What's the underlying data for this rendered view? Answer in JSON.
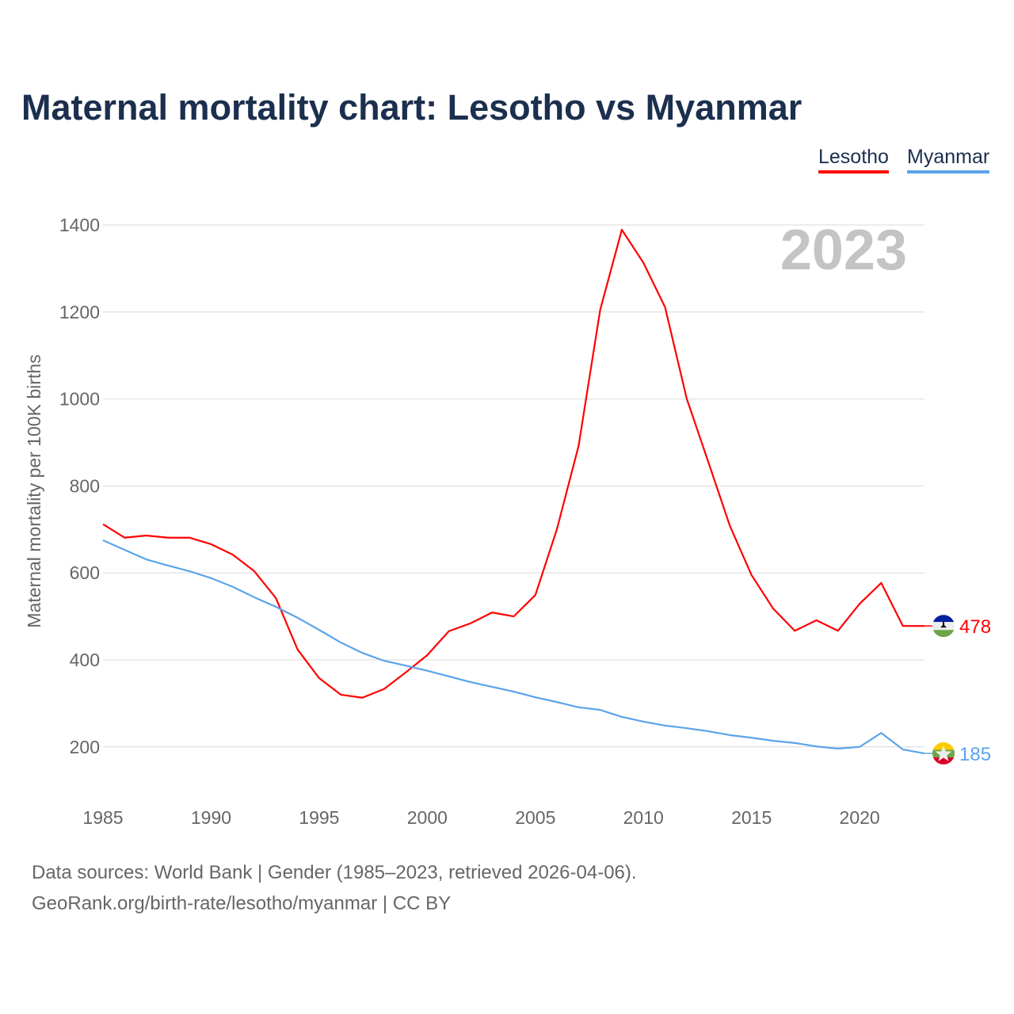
{
  "chart_data": {
    "type": "line",
    "title": "Maternal mortality chart: Lesotho vs Myanmar",
    "xlabel": "",
    "ylabel": "Maternal mortality per 100K births",
    "xlim": [
      1985,
      2023
    ],
    "ylim": [
      100,
      1400
    ],
    "yticks": [
      200,
      400,
      600,
      800,
      1000,
      1200,
      1400
    ],
    "xticks": [
      1985,
      1990,
      1995,
      2000,
      2005,
      2010,
      2015,
      2020
    ],
    "grid": true,
    "legend_position": "top-right",
    "watermark_year": "2023",
    "x": [
      1985,
      1986,
      1987,
      1988,
      1989,
      1990,
      1991,
      1992,
      1993,
      1994,
      1995,
      1996,
      1997,
      1998,
      1999,
      2000,
      2001,
      2002,
      2003,
      2004,
      2005,
      2006,
      2007,
      2008,
      2009,
      2010,
      2011,
      2012,
      2013,
      2014,
      2015,
      2016,
      2017,
      2018,
      2019,
      2020,
      2021,
      2022,
      2023
    ],
    "series": [
      {
        "name": "Lesotho",
        "color": "#ff0000",
        "end_label": "478",
        "flag": "lesotho-flag",
        "values": [
          712,
          681,
          686,
          681,
          681,
          666,
          642,
          604,
          542,
          424,
          358,
          320,
          313,
          333,
          371,
          411,
          466,
          484,
          509,
          500,
          549,
          701,
          892,
          1205,
          1389,
          1313,
          1211,
          1001,
          855,
          708,
          595,
          518,
          467,
          491,
          467,
          529,
          577,
          478,
          478
        ]
      },
      {
        "name": "Myanmar",
        "color": "#5ba4ea",
        "end_label": "185",
        "flag": "myanmar-flag",
        "values": [
          675,
          653,
          631,
          617,
          604,
          588,
          568,
          544,
          522,
          497,
          469,
          440,
          416,
          398,
          387,
          375,
          362,
          349,
          338,
          327,
          314,
          303,
          291,
          285,
          269,
          258,
          249,
          243,
          236,
          227,
          221,
          214,
          209,
          201,
          196,
          200,
          232,
          194,
          185
        ]
      }
    ]
  },
  "footer": {
    "line1": "Data sources: World Bank | Gender (1985–2023, retrieved 2026-04-06).",
    "line2": "GeoRank.org/birth-rate/lesotho/myanmar | CC BY"
  }
}
